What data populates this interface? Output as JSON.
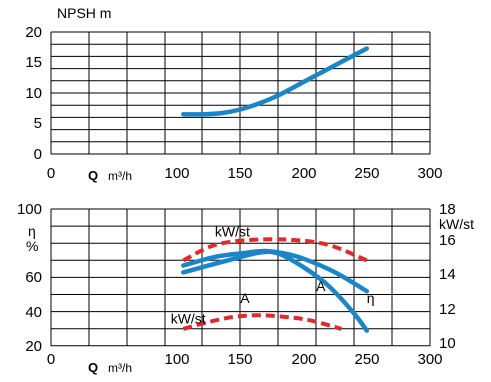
{
  "chart_data": [
    {
      "type": "line",
      "title": "",
      "ylabel": "NPSH m",
      "xlabel_bold": "Q",
      "xlabel_unit": "m³/h",
      "xlim": [
        0,
        300
      ],
      "ylim": [
        0,
        20
      ],
      "x_ticks": [
        "0",
        "100",
        "150",
        "200",
        "250",
        "300"
      ],
      "y_ticks": [
        "0",
        "5",
        "10",
        "15",
        "20"
      ],
      "grid": true,
      "series": [
        {
          "color": "#1a86c8",
          "style": "solid",
          "x": [
            105,
            120,
            135,
            150,
            165,
            180,
            200,
            220,
            250
          ],
          "y": [
            6.5,
            6.5,
            6.7,
            7.3,
            8.3,
            9.6,
            11.8,
            14.0,
            17.3
          ]
        }
      ]
    },
    {
      "type": "line",
      "title": "",
      "ylabel_left": [
        "η",
        "%"
      ],
      "ylabel_right": "kW/st",
      "xlabel_bold": "Q",
      "xlabel_unit": "m³/h",
      "xlim": [
        0,
        300
      ],
      "ylim_left": [
        20,
        100
      ],
      "ylim_right": [
        10,
        18
      ],
      "x_ticks": [
        "0",
        "100",
        "150",
        "200",
        "250",
        "300"
      ],
      "y_ticks_left": [
        "20",
        "40",
        "60",
        "80",
        "100"
      ],
      "y_ticks_right": [
        "10",
        "12",
        "14",
        "16",
        "18"
      ],
      "grid": true,
      "annotations": [
        {
          "text": "kW/st",
          "x": 130,
          "y": 84
        },
        {
          "text": "A",
          "x": 150,
          "y": 45
        },
        {
          "text": "A",
          "x": 210,
          "y": 52
        },
        {
          "text": "η",
          "x": 250,
          "y": 45
        },
        {
          "text": "kW/st",
          "x": 95,
          "y": 33
        }
      ],
      "series": [
        {
          "color": "#e3272b",
          "style": "dashed",
          "axis": "right",
          "x": [
            105,
            130,
            160,
            190,
            220,
            250
          ],
          "y": [
            15.0,
            15.9,
            16.2,
            16.2,
            15.9,
            15.0
          ]
        },
        {
          "color": "#1a86c8",
          "style": "solid",
          "x": [
            105,
            130,
            155,
            170,
            185,
            200,
            225,
            250
          ],
          "y": [
            67,
            72,
            74.5,
            75.5,
            74,
            71,
            63,
            52
          ]
        },
        {
          "color": "#1a86c8",
          "style": "solid",
          "x": [
            105,
            140,
            165,
            180,
            200,
            220,
            240,
            250
          ],
          "y": [
            63,
            70,
            74.5,
            74,
            66,
            55,
            39,
            29
          ]
        },
        {
          "color": "#e3272b",
          "style": "dashed",
          "axis": "right",
          "x": [
            105,
            125,
            145,
            165,
            185,
            205,
            230
          ],
          "y": [
            11.0,
            11.4,
            11.7,
            11.8,
            11.7,
            11.5,
            11.0
          ]
        }
      ]
    }
  ]
}
